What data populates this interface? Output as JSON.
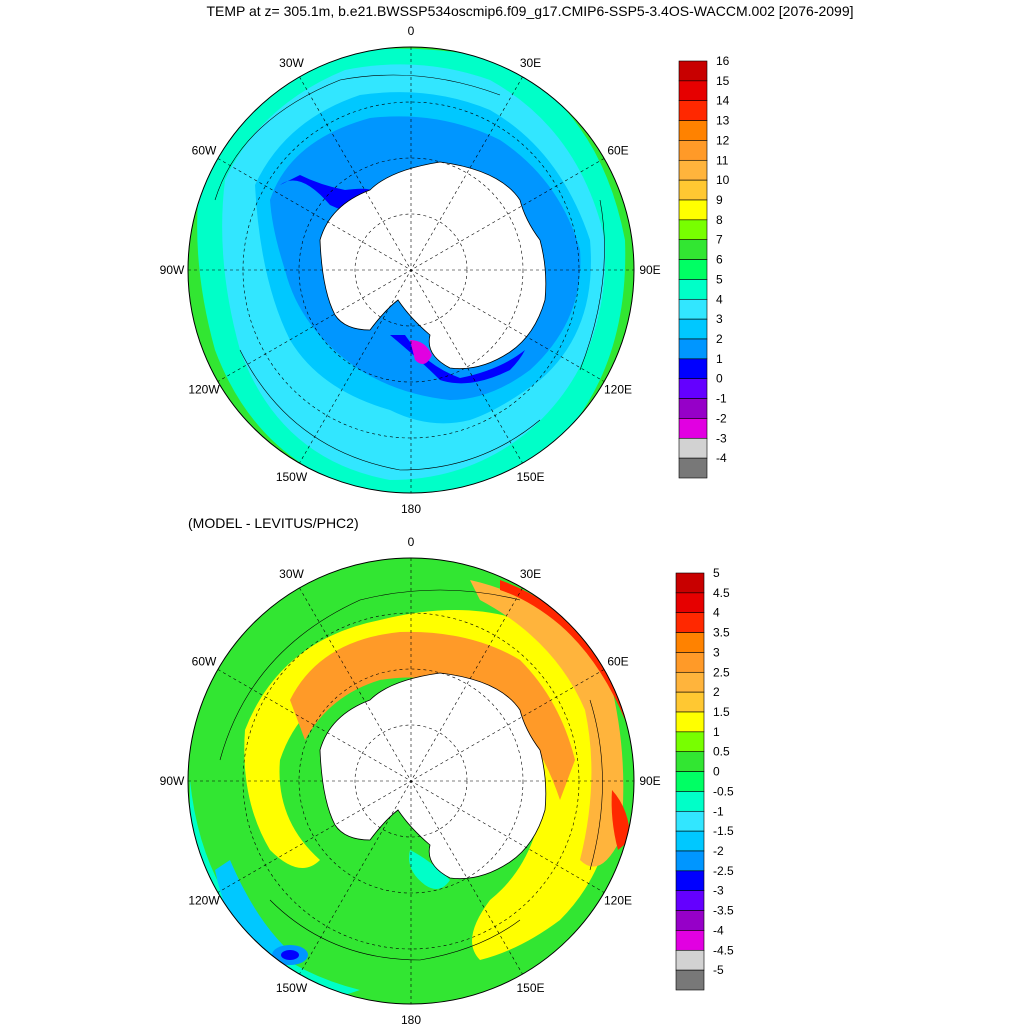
{
  "title": "TEMP at z= 305.1m, b.e21.BWSSP534oscmip6.f09_g17.CMIP6-SSP5-3.4OS-WACCM.002 [2076-2099]",
  "subtitle": "(MODEL - LEVITUS/PHC2)",
  "lon_labels": [
    "0",
    "30E",
    "60E",
    "90E",
    "120E",
    "150E",
    "180",
    "150W",
    "120W",
    "90W",
    "60W",
    "30W"
  ],
  "top_colorbar": {
    "labels": [
      "16",
      "15",
      "14",
      "13",
      "12",
      "11",
      "10",
      "9",
      "8",
      "7",
      "6",
      "5",
      "4",
      "3",
      "2",
      "1",
      "0",
      "-1",
      "-2",
      "-3",
      "-4"
    ],
    "colors": [
      "#c80000",
      "#e60000",
      "#ff2800",
      "#ff8200",
      "#ff9a28",
      "#ffb43c",
      "#ffc832",
      "#ffff00",
      "#78ff00",
      "#32e632",
      "#00ff64",
      "#00ffc8",
      "#32e6ff",
      "#00c8ff",
      "#0096ff",
      "#0000ff",
      "#6400ff",
      "#9600c8",
      "#e100e1",
      "#d2d2d2",
      "#787878"
    ]
  },
  "bottom_colorbar": {
    "labels": [
      "5",
      "4.5",
      "4",
      "3.5",
      "3",
      "2.5",
      "2",
      "1.5",
      "1",
      "0.5",
      "0",
      "-0.5",
      "-1",
      "-1.5",
      "-2",
      "-2.5",
      "-3",
      "-3.5",
      "-4",
      "-4.5",
      "-5"
    ],
    "colors": [
      "#c80000",
      "#e60000",
      "#ff2800",
      "#ff8200",
      "#ff9a28",
      "#ffb43c",
      "#ffc832",
      "#ffff00",
      "#78ff00",
      "#32e632",
      "#00ff64",
      "#00ffc8",
      "#32e6ff",
      "#00c8ff",
      "#0096ff",
      "#0000ff",
      "#6400ff",
      "#9600c8",
      "#e100e1",
      "#d2d2d2",
      "#787878"
    ]
  }
}
